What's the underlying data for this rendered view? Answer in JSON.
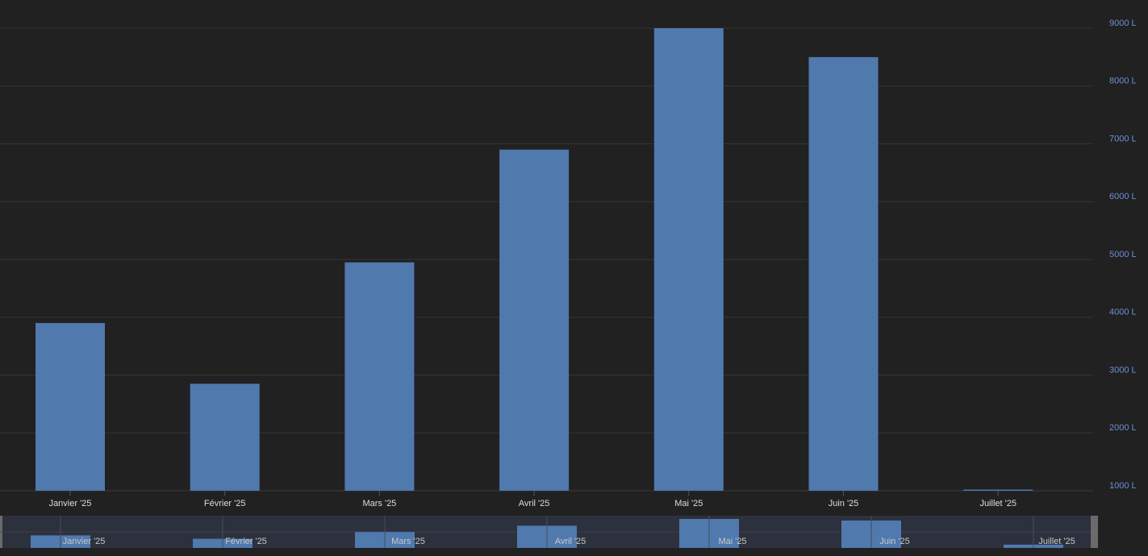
{
  "chart_data": {
    "type": "bar",
    "categories": [
      "Janvier '25",
      "Février '25",
      "Mars '25",
      "Avril '25",
      "Mai '25",
      "Juin '25",
      "Juillet '25"
    ],
    "values": [
      3900,
      2850,
      4950,
      6900,
      9000,
      8500,
      1020
    ],
    "color": "#5079ae",
    "ylim": [
      1000,
      9000
    ],
    "yticks": [
      {
        "value": 1000,
        "label": "1000 L"
      },
      {
        "value": 2000,
        "label": "2000 L"
      },
      {
        "value": 3000,
        "label": "3000 L"
      },
      {
        "value": 4000,
        "label": "4000 L"
      },
      {
        "value": 5000,
        "label": "5000 L"
      },
      {
        "value": 6000,
        "label": "6000 L"
      },
      {
        "value": 7000,
        "label": "7000 L"
      },
      {
        "value": 8000,
        "label": "8000 L"
      },
      {
        "value": 9000,
        "label": "9000 L"
      }
    ],
    "grid": true
  }
}
